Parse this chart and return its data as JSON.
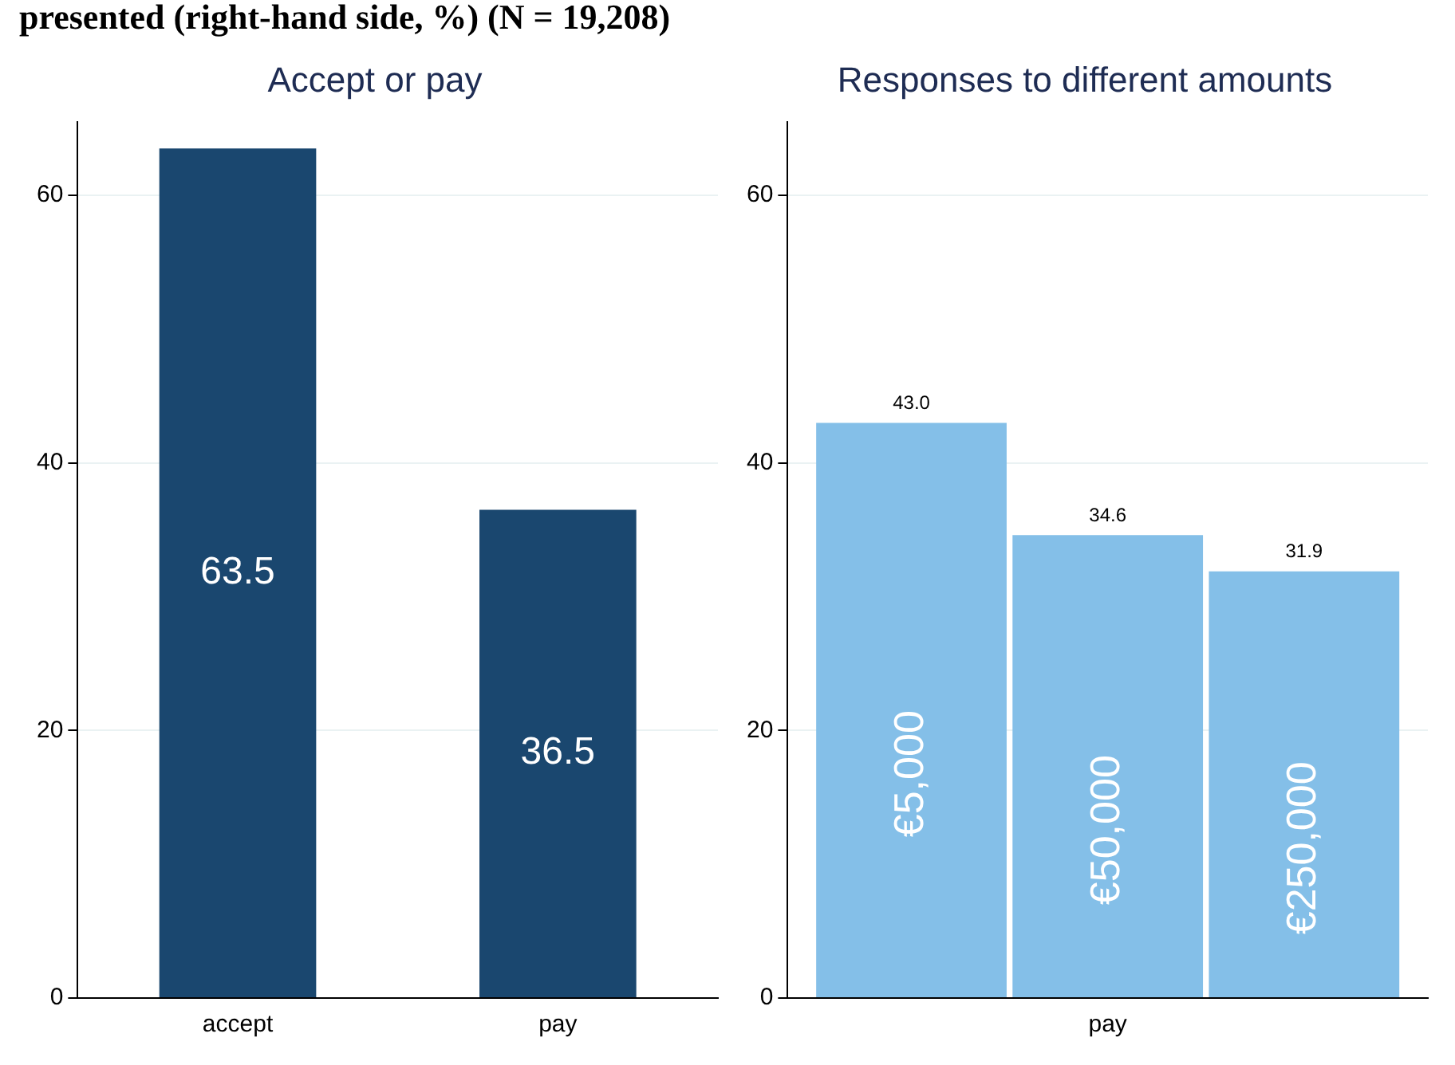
{
  "chart_data": [
    {
      "type": "bar",
      "title": "Accept or pay",
      "annotations": [
        "presented (right-hand side, %) (N = 19,208)"
      ],
      "categories": [
        "accept",
        "pay"
      ],
      "values": [
        63.5,
        36.5
      ],
      "color": "#1a476f",
      "ylim": [
        0,
        65.5
      ],
      "yticks": [
        0,
        20,
        40,
        60
      ],
      "grid": "y",
      "data_labels": true,
      "legend": false
    },
    {
      "type": "bar",
      "title": "Responses to different amounts",
      "categories": [
        "pay"
      ],
      "series": [
        {
          "name": "€5,000",
          "color": "#84bfe8",
          "values": [
            43.0
          ],
          "value_labels": [
            "43.0"
          ]
        },
        {
          "name": "€50,000",
          "color": "#84bfe8",
          "values": [
            34.6
          ],
          "value_labels": [
            "34.6"
          ]
        },
        {
          "name": "€250,000",
          "color": "#84bfe8",
          "values": [
            31.9
          ],
          "value_labels": [
            "31.9"
          ]
        }
      ],
      "ylim": [
        0,
        65.5
      ],
      "yticks": [
        0,
        20,
        40,
        60
      ],
      "grid": "y",
      "legend": false
    }
  ]
}
